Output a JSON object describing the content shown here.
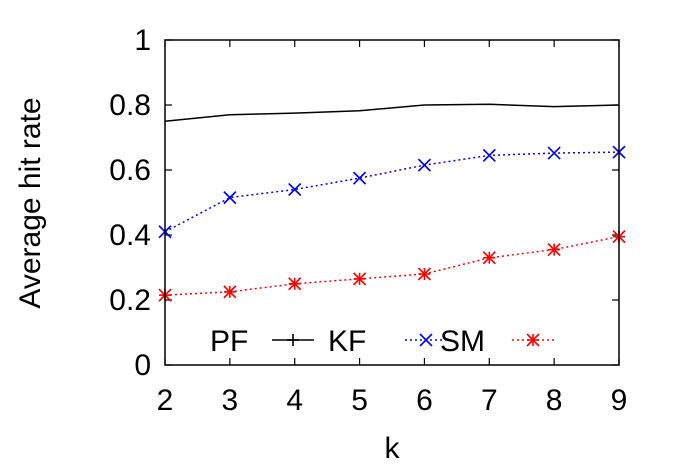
{
  "chart_data": {
    "type": "line",
    "title": "",
    "xlabel": "k",
    "ylabel": "Average hit rate",
    "x": [
      2,
      3,
      4,
      5,
      6,
      7,
      8,
      9
    ],
    "xlim": [
      2,
      9
    ],
    "ylim": [
      0,
      1
    ],
    "xticks": [
      "2",
      "3",
      "4",
      "5",
      "6",
      "7",
      "8",
      "9"
    ],
    "yticks": [
      "0",
      "0.2",
      "0.4",
      "0.6",
      "0.8",
      "1"
    ],
    "grid": false,
    "legend_position": "bottom",
    "legend_prefix": "PF",
    "series": [
      {
        "name": "KF",
        "color": "#000000",
        "line_style": "solid",
        "marker": "plus",
        "values": [
          0.75,
          0.77,
          0.775,
          0.782,
          0.8,
          0.802,
          0.795,
          0.8
        ]
      },
      {
        "name": "SM",
        "color": "#0000ff",
        "line_style": "dotted",
        "marker": "x",
        "values": [
          0.41,
          0.515,
          0.54,
          0.575,
          0.615,
          0.645,
          0.652,
          0.655
        ]
      },
      {
        "name": "",
        "color": "#ff0000",
        "line_style": "dotted",
        "marker": "star",
        "values": [
          0.215,
          0.225,
          0.25,
          0.265,
          0.28,
          0.33,
          0.355,
          0.395
        ]
      }
    ]
  }
}
